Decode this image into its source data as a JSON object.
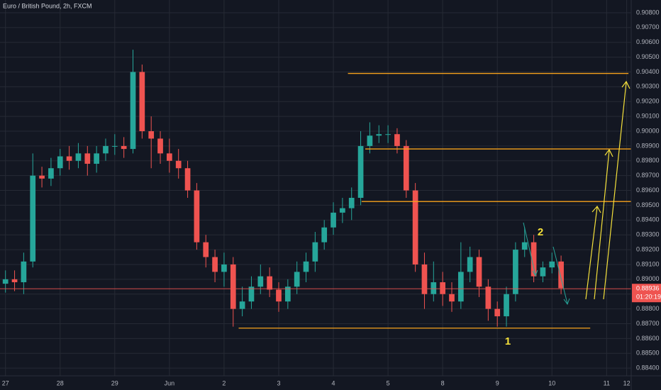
{
  "chart_data": {
    "type": "candlestick",
    "title": "Euro / British Pound, 2h, FXCM",
    "up_color": "#26a69a",
    "down_color": "#ef5350",
    "level_color": "#f7a21b",
    "grid": true,
    "open": [
      0.8897,
      0.89,
      0.8898,
      0.8912,
      0.897,
      0.8968,
      0.8975,
      0.8983,
      0.898,
      0.8985,
      0.8978,
      0.8985,
      0.899,
      0.899,
      0.8988,
      0.904,
      0.9,
      0.8995,
      0.8985,
      0.898,
      0.8975,
      0.896,
      0.8925,
      0.8915,
      0.8905,
      0.891,
      0.888,
      0.8885,
      0.8895,
      0.8902,
      0.8893,
      0.8885,
      0.8895,
      0.8905,
      0.8912,
      0.8925,
      0.8935,
      0.8945,
      0.8948,
      0.8955,
      0.899,
      0.8997,
      0.8998,
      0.8998,
      0.899,
      0.896,
      0.891,
      0.889,
      0.8898,
      0.889,
      0.8885,
      0.8905,
      0.8915,
      0.8895,
      0.888,
      0.8875,
      0.889,
      0.892,
      0.8925,
      0.8902,
      0.8908,
      0.8912
    ],
    "high": [
      0.8906,
      0.8906,
      0.8918,
      0.8985,
      0.8976,
      0.8982,
      0.8988,
      0.899,
      0.8992,
      0.899,
      0.899,
      0.8995,
      0.8998,
      0.8996,
      0.9055,
      0.9045,
      0.901,
      0.9,
      0.8995,
      0.8988,
      0.898,
      0.8965,
      0.893,
      0.892,
      0.8918,
      0.8915,
      0.8895,
      0.8902,
      0.891,
      0.8908,
      0.8898,
      0.89,
      0.8912,
      0.8918,
      0.8932,
      0.894,
      0.8952,
      0.8955,
      0.8962,
      0.9,
      0.9006,
      0.9004,
      0.9004,
      0.9002,
      0.8994,
      0.8965,
      0.8918,
      0.8912,
      0.8905,
      0.8898,
      0.8925,
      0.8922,
      0.892,
      0.89,
      0.8885,
      0.8895,
      0.8925,
      0.8935,
      0.893,
      0.8912,
      0.8918,
      0.8916
    ],
    "low": [
      0.8891,
      0.8892,
      0.889,
      0.8908,
      0.8962,
      0.8963,
      0.897,
      0.8974,
      0.8975,
      0.897,
      0.8972,
      0.898,
      0.8984,
      0.8982,
      0.8985,
      0.8995,
      0.8975,
      0.8978,
      0.8972,
      0.8968,
      0.8955,
      0.892,
      0.8908,
      0.8898,
      0.8895,
      0.8868,
      0.8875,
      0.888,
      0.889,
      0.8888,
      0.8878,
      0.888,
      0.889,
      0.8898,
      0.8905,
      0.892,
      0.893,
      0.8938,
      0.894,
      0.895,
      0.8985,
      0.8992,
      0.8992,
      0.8985,
      0.8955,
      0.8905,
      0.888,
      0.8885,
      0.8882,
      0.8878,
      0.888,
      0.8898,
      0.8888,
      0.8872,
      0.8868,
      0.8868,
      0.8885,
      0.8915,
      0.8898,
      0.8898,
      0.8904,
      0.889
    ],
    "close": [
      0.89,
      0.8898,
      0.8912,
      0.897,
      0.8968,
      0.8975,
      0.8983,
      0.898,
      0.8985,
      0.8978,
      0.8985,
      0.899,
      0.899,
      0.8988,
      0.904,
      0.9,
      0.8995,
      0.8985,
      0.898,
      0.8975,
      0.896,
      0.8925,
      0.8915,
      0.8905,
      0.891,
      0.888,
      0.8885,
      0.8895,
      0.8902,
      0.8893,
      0.8885,
      0.8895,
      0.8905,
      0.8912,
      0.8925,
      0.8935,
      0.8945,
      0.8948,
      0.8955,
      0.899,
      0.8997,
      0.8998,
      0.8998,
      0.899,
      0.896,
      0.891,
      0.889,
      0.8898,
      0.889,
      0.8885,
      0.8905,
      0.8915,
      0.8895,
      0.888,
      0.8875,
      0.889,
      0.892,
      0.8925,
      0.8902,
      0.8908,
      0.8912,
      0.8894
    ],
    "xlim": [
      -0.6,
      68.7
    ],
    "xticks": [
      {
        "value": 0,
        "label": "27"
      },
      {
        "value": 6,
        "label": "28"
      },
      {
        "value": 12,
        "label": "29"
      },
      {
        "value": 18,
        "label": "Jun"
      },
      {
        "value": 24,
        "label": "2"
      },
      {
        "value": 30,
        "label": "3"
      },
      {
        "value": 36,
        "label": "4"
      },
      {
        "value": 42,
        "label": "5"
      },
      {
        "value": 48,
        "label": "8"
      },
      {
        "value": 54,
        "label": "9"
      },
      {
        "value": 60,
        "label": "10"
      },
      {
        "value": 66,
        "label": "11"
      },
      {
        "value": 68.2,
        "label": "12"
      }
    ],
    "ylim": [
      0.88348,
      0.90886
    ],
    "yticks": [
      {
        "value": 0.908,
        "label": "0.90800"
      },
      {
        "value": 0.907,
        "label": "0.90700"
      },
      {
        "value": 0.906,
        "label": "0.90600"
      },
      {
        "value": 0.905,
        "label": "0.90500"
      },
      {
        "value": 0.904,
        "label": "0.90400"
      },
      {
        "value": 0.903,
        "label": "0.90300"
      },
      {
        "value": 0.902,
        "label": "0.90200"
      },
      {
        "value": 0.901,
        "label": "0.90100"
      },
      {
        "value": 0.9,
        "label": "0.90000"
      },
      {
        "value": 0.899,
        "label": "0.89900"
      },
      {
        "value": 0.898,
        "label": "0.89800"
      },
      {
        "value": 0.897,
        "label": "0.89700"
      },
      {
        "value": 0.896,
        "label": "0.89600"
      },
      {
        "value": 0.895,
        "label": "0.89500"
      },
      {
        "value": 0.894,
        "label": "0.89400"
      },
      {
        "value": 0.893,
        "label": "0.89300"
      },
      {
        "value": 0.892,
        "label": "0.89200"
      },
      {
        "value": 0.891,
        "label": "0.89100"
      },
      {
        "value": 0.89,
        "label": "0.89000"
      },
      {
        "value": 0.889,
        "label": "0.88900"
      },
      {
        "value": 0.888,
        "label": "0.88800"
      },
      {
        "value": 0.887,
        "label": "0.88700"
      },
      {
        "value": 0.886,
        "label": "0.88600"
      },
      {
        "value": 0.885,
        "label": "0.88500"
      },
      {
        "value": 0.884,
        "label": "0.88400"
      }
    ],
    "levels": [
      {
        "price": 0.9039,
        "from": 37.6,
        "to": 68.4
      },
      {
        "price": 0.8988,
        "from": 39.5,
        "to": 68.7
      },
      {
        "price": 0.89525,
        "from": 39.1,
        "to": 68.7
      },
      {
        "price": 0.8867,
        "from": 25.6,
        "to": 64.2
      }
    ],
    "last_price": {
      "value": 0.88936,
      "label": "0.88936"
    },
    "countdown": "01:20:19",
    "annotations": [
      "1",
      "2"
    ]
  }
}
